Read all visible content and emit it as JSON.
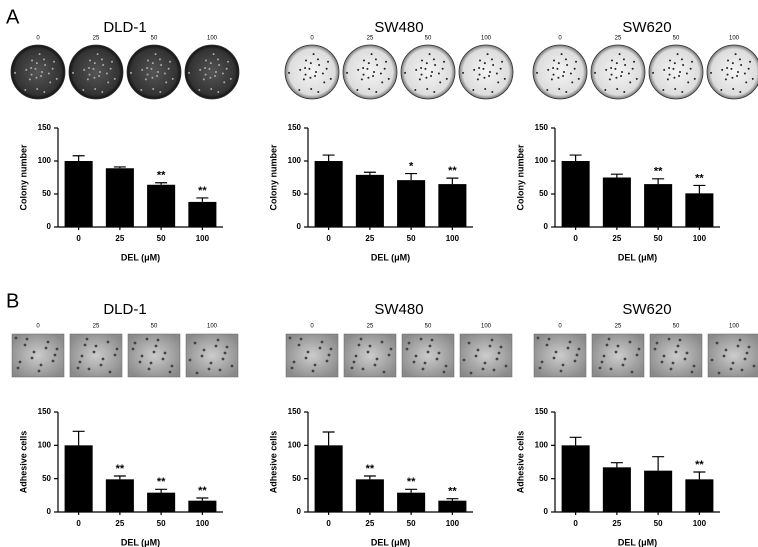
{
  "panels": [
    "A",
    "B"
  ],
  "chart_data": [
    {
      "type": "bar",
      "title": "DLD-1",
      "ylabel": "Colony number",
      "xlabel": "DEL (μM)",
      "image_style": "dish-dark",
      "image_labels": [
        "0",
        "25",
        "50",
        "100"
      ],
      "categories": [
        "0",
        "25",
        "50",
        "100"
      ],
      "values": [
        100,
        89,
        64,
        38
      ],
      "errors": [
        8,
        2,
        3,
        6
      ],
      "annotations": [
        null,
        null,
        "**",
        "**"
      ],
      "ylim": [
        0,
        150
      ],
      "yticks": [
        0,
        50,
        100,
        150
      ],
      "color": "#000000"
    },
    {
      "type": "bar",
      "title": "SW480",
      "ylabel": "Colony number",
      "xlabel": "DEL (μM)",
      "image_style": "dish-light",
      "image_labels": [
        "0",
        "25",
        "50",
        "100"
      ],
      "categories": [
        "0",
        "25",
        "50",
        "100"
      ],
      "values": [
        100,
        79,
        71,
        65
      ],
      "errors": [
        9,
        4,
        10,
        9
      ],
      "annotations": [
        null,
        null,
        "*",
        "**"
      ],
      "ylim": [
        0,
        150
      ],
      "yticks": [
        0,
        50,
        100,
        150
      ],
      "color": "#000000"
    },
    {
      "type": "bar",
      "title": "SW620",
      "ylabel": "Colony number",
      "xlabel": "DEL (μM)",
      "image_style": "dish-light",
      "image_labels": [
        "0",
        "25",
        "50",
        "100"
      ],
      "categories": [
        "0",
        "25",
        "50",
        "100"
      ],
      "values": [
        100,
        75,
        65,
        51
      ],
      "errors": [
        9,
        5,
        8,
        12
      ],
      "annotations": [
        null,
        null,
        "**",
        "**"
      ],
      "ylim": [
        0,
        150
      ],
      "yticks": [
        0,
        50,
        100,
        150
      ],
      "color": "#000000"
    },
    {
      "type": "bar",
      "title": "DLD-1",
      "ylabel": "Adhesive cells",
      "xlabel": "DEL (μM)",
      "image_style": "micro",
      "image_labels": [
        "0",
        "25",
        "50",
        "100"
      ],
      "categories": [
        "0",
        "25",
        "50",
        "100"
      ],
      "values": [
        100,
        49,
        29,
        17
      ],
      "errors": [
        21,
        5,
        5,
        4
      ],
      "annotations": [
        null,
        "**",
        "**",
        "**"
      ],
      "ylim": [
        0,
        150
      ],
      "yticks": [
        0,
        50,
        100,
        150
      ],
      "color": "#000000"
    },
    {
      "type": "bar",
      "title": "SW480",
      "ylabel": "Adhesive cells",
      "xlabel": "DEL (μM)",
      "image_style": "micro",
      "image_labels": [
        "0",
        "25",
        "50",
        "100"
      ],
      "categories": [
        "0",
        "25",
        "50",
        "100"
      ],
      "values": [
        100,
        49,
        29,
        17
      ],
      "errors": [
        20,
        5,
        5,
        3
      ],
      "annotations": [
        null,
        "**",
        "**",
        "**"
      ],
      "ylim": [
        0,
        150
      ],
      "yticks": [
        0,
        50,
        100,
        150
      ],
      "color": "#000000"
    },
    {
      "type": "bar",
      "title": "SW620",
      "ylabel": "Adhesive cells",
      "xlabel": "DEL (μM)",
      "image_style": "micro",
      "image_labels": [
        "0",
        "25",
        "50",
        "100"
      ],
      "categories": [
        "0",
        "25",
        "50",
        "100"
      ],
      "values": [
        100,
        67,
        62,
        49
      ],
      "errors": [
        12,
        7,
        21,
        11
      ],
      "annotations": [
        null,
        null,
        null,
        "**"
      ],
      "ylim": [
        0,
        150
      ],
      "yticks": [
        0,
        50,
        100,
        150
      ],
      "color": "#000000"
    }
  ]
}
